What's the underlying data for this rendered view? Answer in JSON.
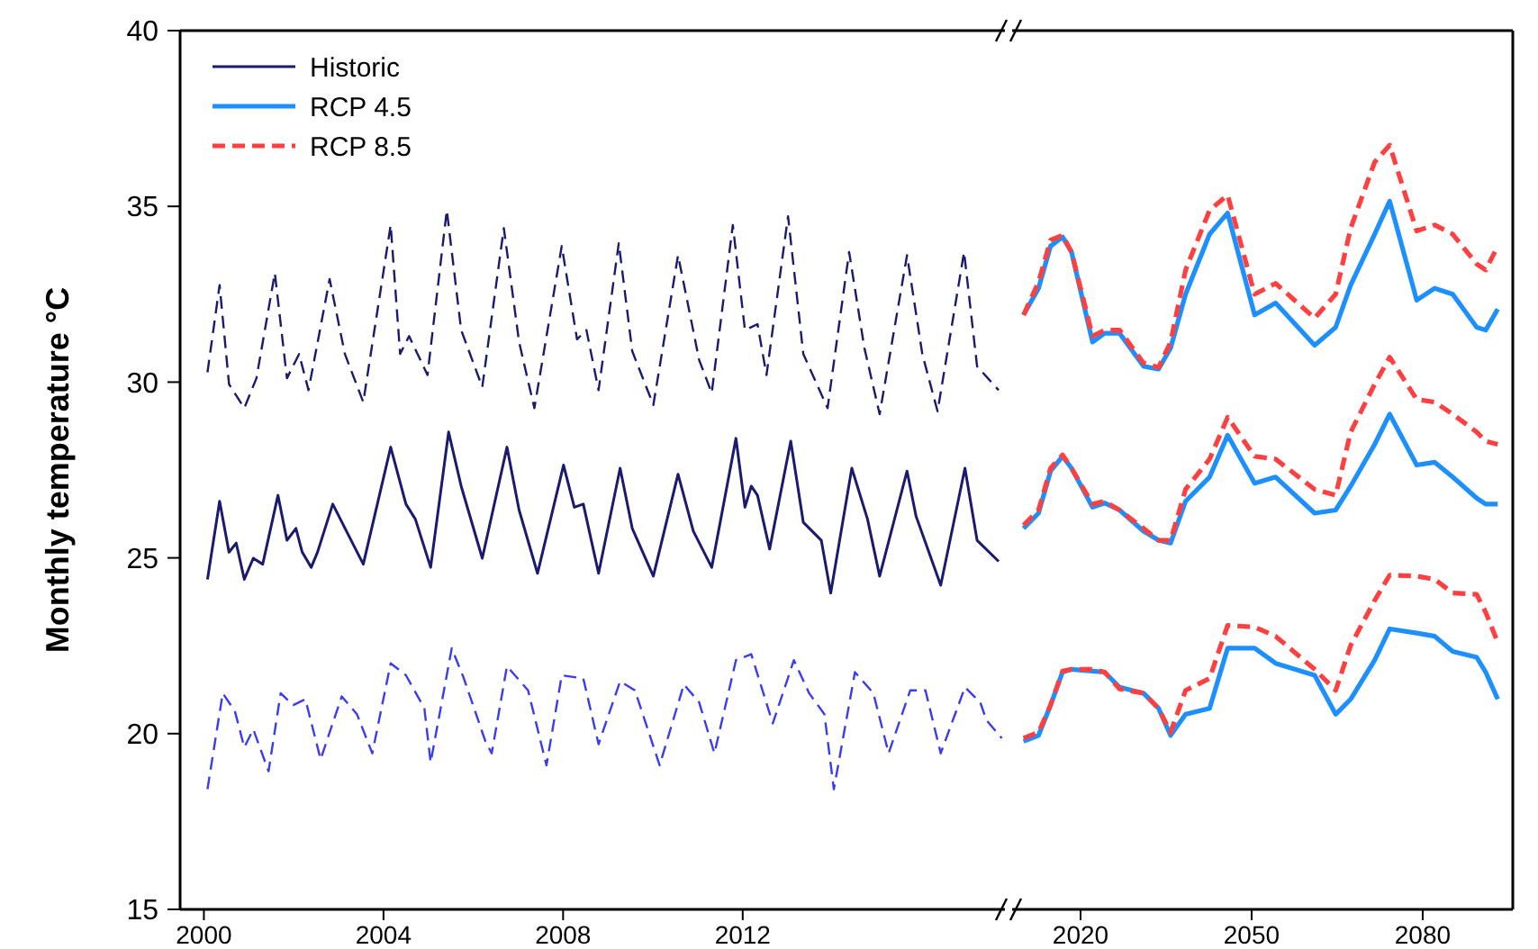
{
  "chart_data": [
    {
      "type": "line",
      "ylabel": "Monthly temperature °C",
      "legend": "top left",
      "xlim": [
        1999.47,
        2017.84
      ],
      "xticks": [
        2000,
        2004,
        2008,
        2012
      ],
      "ylim": [
        15,
        40
      ],
      "yticks": [
        15,
        20,
        25,
        30,
        35,
        40
      ],
      "series": [
        {
          "color": "#1a1a6e",
          "line_style": "dashed",
          "x": [
            2000.08,
            2000.35,
            2000.56,
            2000.9,
            2001.17,
            2001.58,
            2001.85,
            2002.12,
            2002.33,
            2002.8,
            2003.14,
            2003.55,
            2004.16,
            2004.37,
            2004.57,
            2004.98,
            2005.41,
            2005.73,
            2006.2,
            2006.68,
            2007.02,
            2007.36,
            2007.97,
            2008.31,
            2008.52,
            2008.79,
            2009.24,
            2009.54,
            2010.01,
            2010.56,
            2011.03,
            2011.31,
            2011.78,
            2012.05,
            2012.33,
            2012.53,
            2013.01,
            2013.35,
            2013.89,
            2014.37,
            2014.71,
            2015.05,
            2015.66,
            2016.0,
            2016.34,
            2016.93,
            2017.22,
            2017.7
          ],
          "values": [
            30.28,
            32.76,
            29.94,
            29.26,
            30.11,
            33.1,
            30.11,
            30.8,
            29.77,
            32.93,
            30.8,
            29.43,
            34.47,
            30.8,
            31.31,
            30.2,
            34.89,
            31.48,
            29.86,
            34.38,
            31.14,
            29.26,
            33.87,
            31.22,
            31.48,
            29.77,
            33.95,
            30.88,
            29.35,
            33.61,
            30.63,
            29.69,
            34.47,
            31.48,
            31.65,
            30.2,
            34.72,
            30.8,
            29.26,
            33.7,
            30.97,
            29.09,
            33.61,
            30.8,
            29.17,
            33.7,
            30.45,
            29.77
          ]
        },
        {
          "name": "Historic",
          "color": "#1a1a6e",
          "line_style": "solid",
          "x": [
            2000.08,
            2000.35,
            2000.56,
            2000.72,
            2000.9,
            2001.1,
            2001.31,
            2001.65,
            2001.85,
            2002.05,
            2002.19,
            2002.39,
            2002.53,
            2002.87,
            2003.21,
            2003.55,
            2004.16,
            2004.5,
            2004.71,
            2005.05,
            2005.45,
            2005.73,
            2006.2,
            2006.75,
            2007.02,
            2007.43,
            2008.01,
            2008.25,
            2008.45,
            2008.79,
            2009.27,
            2009.54,
            2010.01,
            2010.56,
            2010.9,
            2011.31,
            2011.85,
            2012.05,
            2012.19,
            2012.33,
            2012.6,
            2013.07,
            2013.35,
            2013.75,
            2013.96,
            2014.43,
            2014.78,
            2015.05,
            2015.66,
            2015.86,
            2016.41,
            2016.95,
            2017.22,
            2017.7
          ],
          "values": [
            24.39,
            26.61,
            25.16,
            25.42,
            24.39,
            24.99,
            24.82,
            26.78,
            25.5,
            25.84,
            25.16,
            24.73,
            25.16,
            26.53,
            25.67,
            24.82,
            28.15,
            26.53,
            26.1,
            24.73,
            28.58,
            27.04,
            24.99,
            28.15,
            26.36,
            24.56,
            27.64,
            26.44,
            26.53,
            24.56,
            27.55,
            25.84,
            24.48,
            27.38,
            25.76,
            24.73,
            28.4,
            26.44,
            27.04,
            26.78,
            25.25,
            28.32,
            26.01,
            25.5,
            24.0,
            27.55,
            26.1,
            24.48,
            27.47,
            26.19,
            24.22,
            27.55,
            25.5,
            24.9
          ]
        },
        {
          "color": "#3b3bf0",
          "line_style": "dashed",
          "x": [
            2000.08,
            2000.42,
            2000.69,
            2000.9,
            2001.1,
            2001.44,
            2001.71,
            2001.99,
            2002.26,
            2002.6,
            2003.07,
            2003.41,
            2003.75,
            2004.16,
            2004.5,
            2004.91,
            2005.05,
            2005.52,
            2005.79,
            2006.27,
            2006.41,
            2006.75,
            2007.22,
            2007.63,
            2007.97,
            2008.45,
            2008.79,
            2009.27,
            2009.6,
            2010.15,
            2010.69,
            2011.03,
            2011.37,
            2011.85,
            2012.19,
            2012.67,
            2013.14,
            2013.48,
            2013.82,
            2014.03,
            2014.5,
            2014.91,
            2015.25,
            2015.73,
            2016.07,
            2016.41,
            2016.95,
            2017.29,
            2017.43,
            2017.77
          ],
          "values": [
            18.42,
            21.15,
            20.64,
            19.61,
            20.12,
            18.93,
            21.15,
            20.81,
            20.98,
            19.27,
            21.06,
            20.55,
            19.44,
            22.0,
            21.66,
            20.72,
            19.18,
            22.43,
            21.57,
            19.78,
            19.44,
            21.92,
            21.23,
            19.1,
            21.66,
            21.57,
            19.7,
            21.49,
            21.23,
            19.1,
            21.4,
            20.89,
            19.44,
            22.09,
            22.26,
            20.29,
            22.09,
            21.15,
            20.55,
            18.42,
            21.75,
            21.15,
            19.44,
            21.23,
            21.23,
            19.44,
            21.32,
            20.89,
            20.38,
            19.87
          ]
        }
      ]
    },
    {
      "type": "line",
      "tick_labels": "x",
      "legend": "top left",
      "xlim": [
        2008,
        2095.8
      ],
      "xticks": [
        2020,
        2050,
        2080
      ],
      "ylim": [
        15,
        40
      ],
      "series": [
        {
          "name": "RCP 4.5",
          "color": "#1e8fff",
          "line_style": "solid",
          "x": [
            2010.0,
            2012.63,
            2014.74,
            2016.84,
            2018.42,
            2022.1,
            2024.21,
            2026.84,
            2031.05,
            2033.68,
            2035.79,
            2038.42,
            2042.63,
            2045.79,
            2050.53,
            2054.21,
            2061.05,
            2064.74,
            2067.37,
            2071.58,
            2074.21,
            2078.95,
            2082.11,
            2085.26,
            2089.47,
            2091.05,
            2093.16
          ],
          "values": [
            31.91,
            32.67,
            33.87,
            34.13,
            33.7,
            31.14,
            31.39,
            31.39,
            30.45,
            30.37,
            30.97,
            32.5,
            34.21,
            34.81,
            31.91,
            32.25,
            31.05,
            31.56,
            32.76,
            34.21,
            35.15,
            32.33,
            32.67,
            32.5,
            31.56,
            31.48,
            32.08
          ]
        },
        {
          "color": "#1e8fff",
          "line_style": "solid",
          "x": [
            2010.0,
            2012.63,
            2014.74,
            2016.84,
            2018.42,
            2022.1,
            2024.21,
            2026.84,
            2031.05,
            2033.68,
            2035.79,
            2038.42,
            2042.63,
            2045.79,
            2050.53,
            2054.21,
            2061.05,
            2064.74,
            2067.37,
            2071.58,
            2074.21,
            2078.95,
            2082.11,
            2085.26,
            2089.47,
            2091.05,
            2093.16
          ],
          "values": [
            25.84,
            26.27,
            27.47,
            27.89,
            27.55,
            26.44,
            26.56,
            26.36,
            25.76,
            25.5,
            25.42,
            26.61,
            27.3,
            28.49,
            27.12,
            27.3,
            26.27,
            26.36,
            27.04,
            28.23,
            29.09,
            27.64,
            27.72,
            27.3,
            26.7,
            26.53,
            26.53
          ]
        },
        {
          "color": "#1e8fff",
          "line_style": "solid",
          "x": [
            2010.0,
            2012.63,
            2014.74,
            2016.84,
            2018.42,
            2022.1,
            2024.21,
            2026.84,
            2031.05,
            2033.68,
            2035.79,
            2038.42,
            2042.63,
            2045.79,
            2050.53,
            2054.21,
            2061.05,
            2064.74,
            2067.37,
            2071.58,
            2074.21,
            2078.95,
            2082.11,
            2085.26,
            2089.47,
            2091.05,
            2093.16
          ],
          "values": [
            19.78,
            19.95,
            20.81,
            21.75,
            21.83,
            21.78,
            21.75,
            21.32,
            21.15,
            20.72,
            19.95,
            20.55,
            20.72,
            22.43,
            22.43,
            22.0,
            21.66,
            20.55,
            20.98,
            22.09,
            22.98,
            22.86,
            22.77,
            22.34,
            22.17,
            21.75,
            20.98
          ]
        },
        {
          "name": "RCP 8.5",
          "color": "#ff4040",
          "line_style": "dashed",
          "x": [
            2010.0,
            2012.63,
            2014.74,
            2016.84,
            2018.42,
            2022.1,
            2024.21,
            2026.84,
            2031.05,
            2033.68,
            2035.79,
            2038.42,
            2042.63,
            2045.79,
            2050.53,
            2054.21,
            2061.05,
            2064.74,
            2067.37,
            2071.58,
            2074.21,
            2078.95,
            2082.11,
            2085.26,
            2089.47,
            2091.05,
            2093.16
          ],
          "values": [
            31.91,
            32.85,
            34.04,
            34.18,
            33.7,
            31.31,
            31.48,
            31.48,
            30.54,
            30.42,
            31.14,
            33.19,
            34.89,
            35.32,
            32.5,
            32.81,
            31.82,
            32.5,
            34.38,
            36.26,
            36.74,
            34.3,
            34.47,
            34.21,
            33.36,
            33.19,
            33.87
          ]
        },
        {
          "color": "#ff4040",
          "line_style": "dashed",
          "x": [
            2010.0,
            2012.63,
            2014.74,
            2016.84,
            2018.42,
            2022.1,
            2024.21,
            2026.84,
            2031.05,
            2033.68,
            2035.79,
            2038.42,
            2042.63,
            2045.79,
            2050.53,
            2054.21,
            2061.05,
            2064.74,
            2067.37,
            2071.58,
            2074.21,
            2078.95,
            2082.11,
            2085.26,
            2089.47,
            2091.05,
            2093.16
          ],
          "values": [
            25.93,
            26.36,
            27.55,
            27.93,
            27.55,
            26.53,
            26.61,
            26.36,
            25.84,
            25.5,
            25.5,
            26.95,
            27.81,
            29.0,
            27.89,
            27.81,
            26.95,
            26.78,
            28.58,
            29.94,
            30.71,
            29.51,
            29.43,
            29.09,
            28.58,
            28.32,
            28.23
          ]
        },
        {
          "color": "#ff4040",
          "line_style": "dashed",
          "x": [
            2010.0,
            2012.63,
            2014.74,
            2016.84,
            2018.42,
            2022.1,
            2024.21,
            2026.84,
            2031.05,
            2033.68,
            2035.79,
            2038.42,
            2042.63,
            2045.79,
            2050.53,
            2054.21,
            2061.05,
            2064.74,
            2067.37,
            2071.58,
            2074.21,
            2078.95,
            2082.11,
            2085.26,
            2089.47,
            2091.05,
            2093.16
          ],
          "values": [
            19.87,
            20.04,
            20.81,
            21.78,
            21.83,
            21.83,
            21.75,
            21.27,
            21.15,
            20.72,
            20.04,
            21.23,
            21.57,
            23.08,
            23.03,
            22.77,
            21.83,
            21.23,
            22.51,
            23.79,
            24.51,
            24.48,
            24.39,
            24.0,
            23.96,
            23.45,
            22.6
          ]
        }
      ]
    }
  ]
}
